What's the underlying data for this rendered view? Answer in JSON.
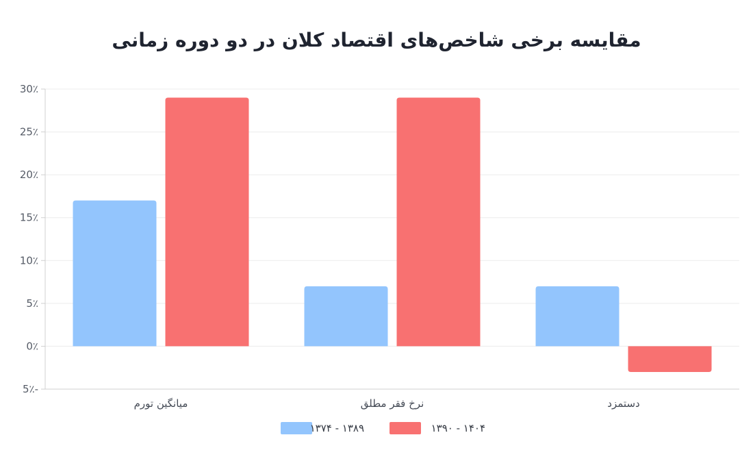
{
  "chart_data": {
    "type": "bar",
    "title": "مقایسه برخی شاخص‌های اقتصاد کلان در دو دوره زمانی",
    "categories": [
      "میانگین تورم",
      "نرخ فقر مطلق",
      "دستمزد"
    ],
    "series": [
      {
        "name": "۱۳۷۴ - ۱۳۸۹",
        "color": "#93c5fd",
        "values": [
          17,
          7,
          7
        ]
      },
      {
        "name": "۱۳۹۰ - ۱۴۰۴",
        "color": "#f87171",
        "values": [
          29,
          29,
          -3
        ]
      }
    ],
    "ylim": [
      -5,
      30
    ],
    "yticks": [
      {
        "value": 30,
        "label": "30٪"
      },
      {
        "value": 25,
        "label": "25٪"
      },
      {
        "value": 20,
        "label": "20٪"
      },
      {
        "value": 15,
        "label": "15٪"
      },
      {
        "value": 10,
        "label": "10٪"
      },
      {
        "value": 5,
        "label": "5٪"
      },
      {
        "value": 0,
        "label": "0٪"
      },
      {
        "value": -5,
        "label": "5٪-"
      }
    ],
    "grid": true,
    "legend_position": "bottom"
  }
}
